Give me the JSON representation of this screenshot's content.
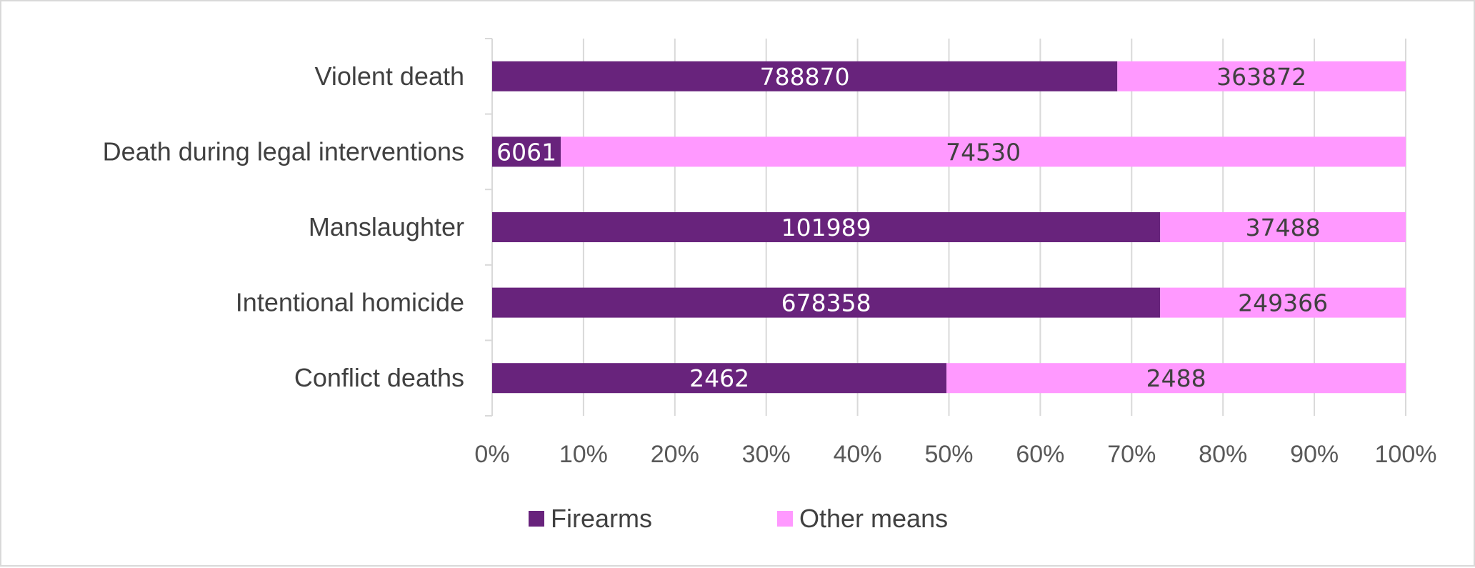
{
  "chart_data": {
    "type": "bar",
    "orientation": "horizontal",
    "stacked": "percent",
    "categories": [
      "Violent death",
      "Death during legal interventions",
      "Manslaughter",
      "Intentional homicide",
      "Conflict deaths"
    ],
    "series": [
      {
        "name": "Firearms",
        "color": "#68237c",
        "label_color": "#ffffff",
        "values": [
          788870,
          6061,
          101989,
          678358,
          2462
        ]
      },
      {
        "name": "Other means",
        "color": "#ff99ff",
        "label_color": "#404040",
        "values": [
          363872,
          74530,
          37488,
          249366,
          2488
        ]
      }
    ],
    "x_ticks": [
      "0%",
      "10%",
      "20%",
      "30%",
      "40%",
      "50%",
      "60%",
      "70%",
      "80%",
      "90%",
      "100%"
    ],
    "xlim": [
      0,
      100
    ],
    "title": "",
    "xlabel": "",
    "ylabel": "",
    "grid": "vertical",
    "legend_position": "bottom",
    "gridline_color": "#d9d9d9",
    "text_color": "#404040"
  }
}
